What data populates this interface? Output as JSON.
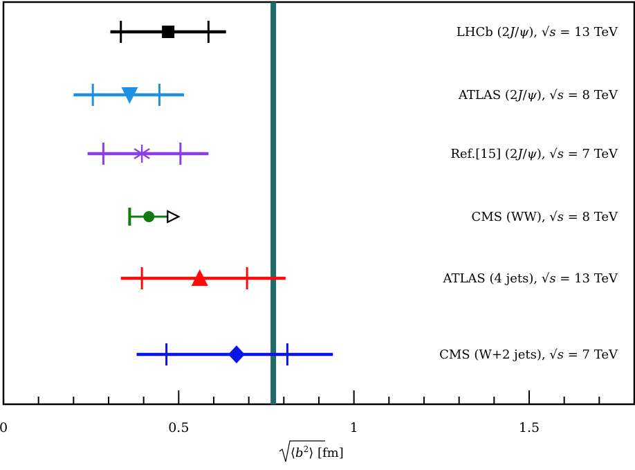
{
  "chart_data": {
    "type": "scatter",
    "title": "",
    "xlabel": "√⟨b²⟩ [fm]",
    "ylabel": "",
    "xlim": [
      0,
      1.8
    ],
    "x_ticks": [
      0,
      0.5,
      1,
      1.5
    ],
    "x_tick_labels": [
      "0",
      "0.5",
      "1",
      "1.5"
    ],
    "x_minor_step": 0.1,
    "reference_line": {
      "x": 0.77,
      "color": "#1f6b6b"
    },
    "series": [
      {
        "name": "LHCb (2J/ψ), √s = 13 TeV",
        "label_parts": [
          "LHCb (2",
          "J",
          "/",
          "ψ",
          "),  ",
          "√",
          "s",
          " = 13 TeV"
        ],
        "value": 0.47,
        "stat_low": 0.335,
        "stat_high": 0.585,
        "tot_low": 0.305,
        "tot_high": 0.635,
        "color": "#000000",
        "marker": "square"
      },
      {
        "name": "ATLAS (2J/ψ), √s = 8 TeV",
        "label_parts": [
          "ATLAS (2",
          "J",
          "/",
          "ψ",
          "),  ",
          "√",
          "s",
          " = 8 TeV"
        ],
        "value": 0.36,
        "stat_low": 0.255,
        "stat_high": 0.445,
        "tot_low": 0.2,
        "tot_high": 0.515,
        "color": "#1e90e6",
        "marker": "triangle-down"
      },
      {
        "name": "Ref.[15] (2J/ψ), √s = 7 TeV",
        "label_parts": [
          "Ref.[15] (2",
          "J",
          "/",
          "ψ",
          "),  ",
          "√",
          "s",
          " = 7 TeV"
        ],
        "value": 0.395,
        "stat_low": 0.285,
        "stat_high": 0.505,
        "tot_low": 0.24,
        "tot_high": 0.585,
        "color": "#8a3ee8",
        "marker": "asterisk"
      },
      {
        "name": "CMS (WW), √s = 8 TeV",
        "label_parts": [
          "CMS (WW), ",
          "√",
          "s",
          " = 8 TeV"
        ],
        "value": 0.415,
        "lower_limit": 0.36,
        "arrow_to": 0.5,
        "color": "#117a11",
        "marker": "circle"
      },
      {
        "name": "ATLAS (4 jets), √s = 13 TeV",
        "label_parts": [
          "ATLAS (4 jets), ",
          "√",
          "s",
          " = 13 TeV"
        ],
        "value": 0.56,
        "stat_low": 0.395,
        "stat_high": 0.695,
        "tot_low": 0.335,
        "tot_high": 0.805,
        "color": "#ff0a0a",
        "marker": "triangle-up"
      },
      {
        "name": "CMS (W+2 jets), √s = 7 TeV",
        "label_parts": [
          "CMS (W+2 jets), ",
          "√",
          "s",
          " = 7 TeV"
        ],
        "value": 0.665,
        "stat_low": 0.465,
        "stat_high": 0.81,
        "tot_low": 0.38,
        "tot_high": 0.94,
        "color": "#0a14e6",
        "marker": "diamond"
      }
    ]
  }
}
